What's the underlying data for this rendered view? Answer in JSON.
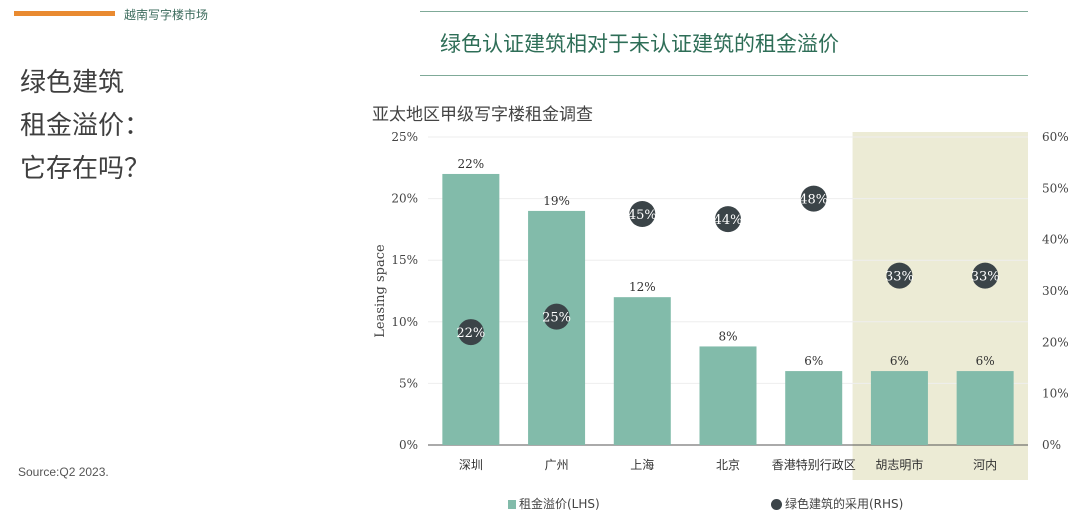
{
  "header": {
    "section_label": "越南写字楼市场",
    "accent_color": "#e98a30"
  },
  "headline": {
    "lines": [
      "绿色建筑",
      "租金溢价：",
      "它存在吗？"
    ]
  },
  "source": "Source:Q2 2023.",
  "chart_data": {
    "type": "bar",
    "title": "绿色认证建筑相对于未认证建筑的租金溢价",
    "subtitle": "亚太地区甲级写字楼租金调查",
    "ylabel": "Leasing space",
    "categories": [
      "深圳",
      "广州",
      "上海",
      "北京",
      "香港特别行政区",
      "胡志明市",
      "河内"
    ],
    "ylim": [
      0,
      25
    ],
    "y_ticks": [
      "0%",
      "5%",
      "10%",
      "15%",
      "20%",
      "25%"
    ],
    "y2lim": [
      0,
      60
    ],
    "y2_ticks": [
      "0%",
      "10%",
      "20%",
      "30%",
      "40%",
      "50%",
      "60%"
    ],
    "grid": true,
    "legend_position": "bottom",
    "highlight_categories": [
      "胡志明市",
      "河内"
    ],
    "highlight_color": "#ecebd5",
    "series": [
      {
        "name": "租金溢价(LHS)",
        "kind": "bar",
        "axis": "left",
        "color": "#82bbaa",
        "values": [
          22,
          19,
          12,
          8,
          6,
          6,
          6
        ],
        "labels": [
          "22%",
          "19%",
          "12%",
          "8%",
          "6%",
          "6%",
          "6%"
        ]
      },
      {
        "name": "绿色建筑的采用(RHS)",
        "kind": "scatter",
        "axis": "right",
        "color": "#3b4448",
        "values": [
          22,
          25,
          45,
          44,
          48,
          33,
          33
        ],
        "labels": [
          "22%",
          "25%",
          "45%",
          "44%",
          "48%",
          "33%",
          "33%"
        ]
      }
    ]
  }
}
